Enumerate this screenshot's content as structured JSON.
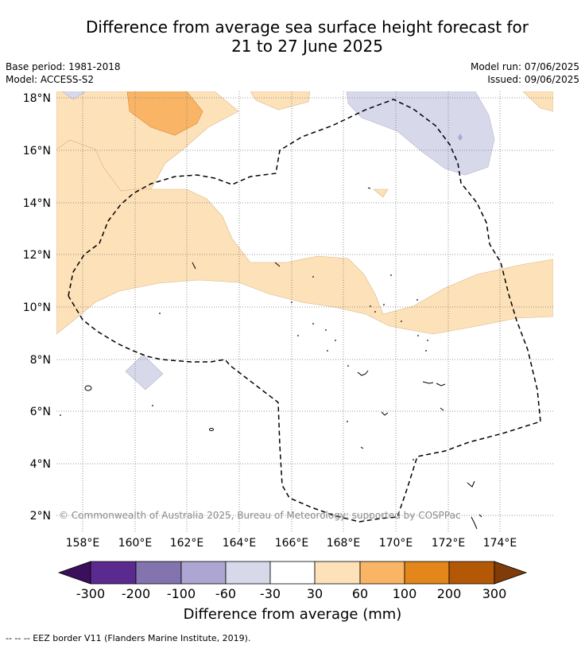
{
  "title_line1": "Difference from average sea surface height forecast for",
  "title_line2": "21 to 27 June 2025",
  "base_period": "Base period: 1981-2018",
  "model": "Model: ACCESS-S2",
  "model_run": "Model run: 07/06/2025",
  "issued": "Issued: 09/06/2025",
  "copyright": "© Commonwealth of Australia 2025, Bureau of Meteorology; supported by COSPPac",
  "colorbar": {
    "label": "Difference from average (mm)",
    "ticks": [
      "-300",
      "-200",
      "-100",
      "-60",
      "-30",
      "30",
      "60",
      "100",
      "200",
      "300"
    ],
    "colors": [
      "#5a2a8f",
      "#8374b0",
      "#aea6d2",
      "#d8d8eb",
      "#ffffff",
      "#fde1b8",
      "#f9b565",
      "#e3861c",
      "#b35806"
    ],
    "under_color": "#3b0f5c",
    "over_color": "#7f3b08"
  },
  "lat_labels": [
    "18°N",
    "16°N",
    "14°N",
    "12°N",
    "10°N",
    "8°N",
    "6°N",
    "4°N",
    "2°N"
  ],
  "lon_labels": [
    "158°E",
    "160°E",
    "162°E",
    "164°E",
    "166°E",
    "168°E",
    "170°E",
    "172°E",
    "174°E"
  ],
  "footer": "-- -- -- EEZ border V11 (Flanders Marine Institute, 2019)."
}
